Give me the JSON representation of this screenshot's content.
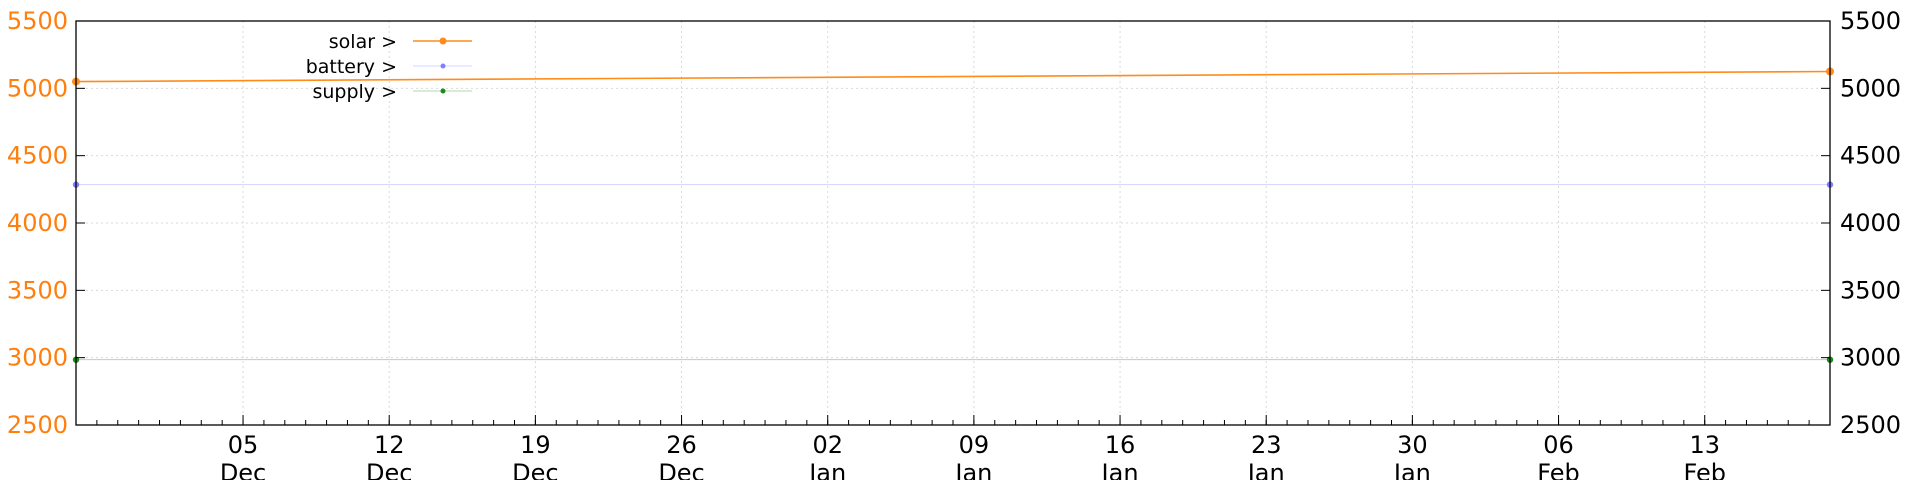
{
  "chart_data": {
    "type": "line",
    "title": "",
    "xlabel": "",
    "ylabel": "",
    "x_range": [
      "2021-11-27",
      "2022-02-19"
    ],
    "ylim": [
      2500,
      5500
    ],
    "y_ticks": [
      2500,
      3000,
      3500,
      4000,
      4500,
      5000,
      5500
    ],
    "x_ticks": [
      {
        "date": "2021-12-05",
        "day": "05",
        "month": "Dec"
      },
      {
        "date": "2021-12-12",
        "day": "12",
        "month": "Dec"
      },
      {
        "date": "2021-12-19",
        "day": "19",
        "month": "Dec"
      },
      {
        "date": "2021-12-26",
        "day": "26",
        "month": "Dec"
      },
      {
        "date": "2022-01-02",
        "day": "02",
        "month": "Jan"
      },
      {
        "date": "2022-01-09",
        "day": "09",
        "month": "Jan"
      },
      {
        "date": "2022-01-16",
        "day": "16",
        "month": "Jan"
      },
      {
        "date": "2022-01-23",
        "day": "23",
        "month": "Jan"
      },
      {
        "date": "2022-01-30",
        "day": "30",
        "month": "Jan"
      },
      {
        "date": "2022-02-06",
        "day": "06",
        "month": "Feb"
      },
      {
        "date": "2022-02-13",
        "day": "13",
        "month": "Feb"
      }
    ],
    "grid": true,
    "legend_position": "top-left",
    "left_axis_color": "#ff7f0e",
    "right_axis_color": "#000000",
    "series": [
      {
        "name": "solar >",
        "color": "#ff8c1a",
        "points": [
          {
            "x": "2021-11-27",
            "y": 5050
          },
          {
            "x": "2022-02-19",
            "y": 5125
          }
        ]
      },
      {
        "name": "battery >",
        "color": "#8080ff",
        "points": [
          {
            "x": "2021-11-27",
            "y": 4285
          },
          {
            "x": "2022-02-19",
            "y": 4285
          }
        ]
      },
      {
        "name": "supply >",
        "color": "#1a8c1a",
        "points": [
          {
            "x": "2021-11-27",
            "y": 2985
          },
          {
            "x": "2022-02-19",
            "y": 2985
          }
        ]
      }
    ]
  }
}
